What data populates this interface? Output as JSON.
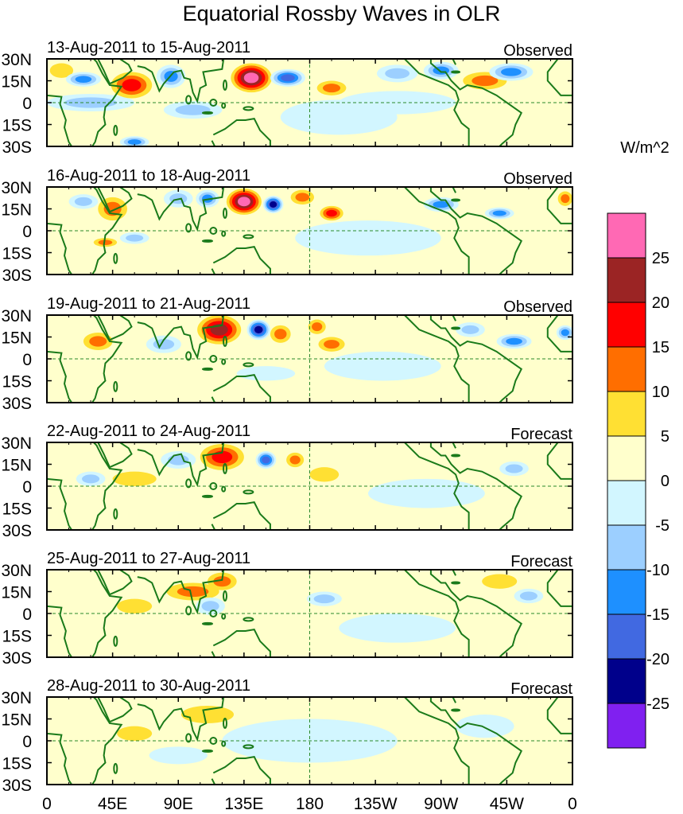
{
  "title": "Equatorial Rossby Waves in OLR",
  "colorbar": {
    "units": "W/m^2",
    "labels": [
      "25",
      "20",
      "15",
      "10",
      "5",
      "0",
      "-5",
      "-10",
      "-15",
      "-20",
      "-25"
    ],
    "colors": [
      "#ff69b4",
      "#9b2424",
      "#ff0000",
      "#ff6e00",
      "#ffe033",
      "#ffffcc",
      "#d2f6ff",
      "#9ccfff",
      "#1e90ff",
      "#4169e1",
      "#00008b",
      "#8020f0"
    ]
  },
  "lon_labels": [
    "0",
    "45E",
    "90E",
    "135E",
    "180",
    "135W",
    "90W",
    "45W",
    "0"
  ],
  "lat_labels": [
    "30N",
    "15N",
    "0",
    "15S",
    "30S"
  ],
  "chart_data": {
    "type": "heatmap",
    "title": "Equatorial Rossby Waves in OLR",
    "xlabel": "Longitude",
    "ylabel": "Latitude",
    "xlim": [
      0,
      360
    ],
    "ylim": [
      -30,
      30
    ],
    "levels": [
      -25,
      -20,
      -15,
      -10,
      -5,
      0,
      5,
      10,
      15,
      20,
      25
    ],
    "anomaly_format": "[lon, lat, lon_halfwidth_deg, lat_halfwidth_deg, peak_value]",
    "panels": [
      {
        "date": "13-Aug-2011 to 15-Aug-2011",
        "type": "Observed",
        "anomalies": [
          [
            200,
            -10,
            40,
            12,
            -3
          ],
          [
            30,
            0,
            30,
            6,
            -6
          ],
          [
            240,
            0,
            40,
            8,
            -3
          ],
          [
            100,
            -5,
            20,
            6,
            -6
          ],
          [
            58,
            12,
            14,
            9,
            17
          ],
          [
            140,
            17,
            14,
            10,
            28
          ],
          [
            195,
            10,
            10,
            5,
            14
          ],
          [
            300,
            15,
            15,
            6,
            13
          ],
          [
            10,
            22,
            8,
            5,
            10
          ],
          [
            25,
            16,
            12,
            5,
            -12
          ],
          [
            85,
            18,
            10,
            8,
            -12
          ],
          [
            165,
            17,
            12,
            6,
            -17
          ],
          [
            240,
            20,
            14,
            6,
            -9
          ],
          [
            270,
            22,
            12,
            6,
            -14
          ],
          [
            318,
            21,
            15,
            6,
            -14
          ],
          [
            60,
            -27,
            10,
            4,
            -14
          ]
        ]
      },
      {
        "date": "16-Aug-2011 to 18-Aug-2011",
        "type": "Observed",
        "anomalies": [
          [
            220,
            -5,
            50,
            12,
            -3
          ],
          [
            45,
            15,
            10,
            8,
            13
          ],
          [
            135,
            20,
            12,
            9,
            28
          ],
          [
            155,
            18,
            7,
            6,
            -22
          ],
          [
            175,
            23,
            8,
            5,
            15
          ],
          [
            195,
            12,
            8,
            5,
            17
          ],
          [
            110,
            22,
            8,
            6,
            -12
          ],
          [
            90,
            22,
            10,
            6,
            -10
          ],
          [
            25,
            20,
            10,
            5,
            -10
          ],
          [
            310,
            12,
            10,
            4,
            -15
          ],
          [
            270,
            18,
            12,
            5,
            -12
          ],
          [
            355,
            22,
            5,
            5,
            13
          ],
          [
            60,
            -5,
            10,
            4,
            -10
          ],
          [
            40,
            -8,
            8,
            3,
            12
          ]
        ]
      },
      {
        "date": "19-Aug-2011 to 21-Aug-2011",
        "type": "Observed",
        "anomalies": [
          [
            230,
            -5,
            40,
            10,
            -3
          ],
          [
            150,
            -10,
            20,
            5,
            -5
          ],
          [
            35,
            12,
            10,
            6,
            12
          ],
          [
            118,
            20,
            15,
            10,
            22
          ],
          [
            145,
            20,
            8,
            7,
            -22
          ],
          [
            160,
            17,
            7,
            6,
            15
          ],
          [
            185,
            22,
            6,
            5,
            14
          ],
          [
            195,
            10,
            9,
            5,
            15
          ],
          [
            80,
            10,
            12,
            6,
            -10
          ],
          [
            320,
            12,
            12,
            5,
            -15
          ],
          [
            290,
            20,
            10,
            5,
            -10
          ],
          [
            355,
            18,
            6,
            5,
            -12
          ]
        ]
      },
      {
        "date": "22-Aug-2011 to 24-Aug-2011",
        "type": "Forecast",
        "anomalies": [
          [
            260,
            -5,
            40,
            10,
            -3
          ],
          [
            30,
            5,
            10,
            5,
            -6
          ],
          [
            120,
            20,
            15,
            9,
            17
          ],
          [
            150,
            18,
            7,
            6,
            -17
          ],
          [
            170,
            18,
            6,
            5,
            13
          ],
          [
            190,
            8,
            10,
            5,
            10
          ],
          [
            90,
            18,
            12,
            6,
            -8
          ],
          [
            320,
            12,
            10,
            5,
            -10
          ],
          [
            60,
            5,
            15,
            5,
            8
          ]
        ]
      },
      {
        "date": "25-Aug-2011 to 27-Aug-2011",
        "type": "Forecast",
        "anomalies": [
          [
            240,
            -10,
            40,
            10,
            -3
          ],
          [
            100,
            15,
            18,
            6,
            12
          ],
          [
            120,
            22,
            10,
            6,
            12
          ],
          [
            112,
            5,
            10,
            6,
            -8
          ],
          [
            60,
            5,
            12,
            5,
            6
          ],
          [
            190,
            10,
            12,
            5,
            -6
          ],
          [
            310,
            22,
            12,
            5,
            7
          ],
          [
            330,
            12,
            10,
            5,
            -8
          ]
        ]
      },
      {
        "date": "28-Aug-2011 to 30-Aug-2011",
        "type": "Forecast",
        "anomalies": [
          [
            180,
            0,
            60,
            15,
            -3
          ],
          [
            300,
            10,
            20,
            8,
            -3
          ],
          [
            90,
            -10,
            20,
            6,
            -3
          ],
          [
            110,
            18,
            18,
            6,
            7
          ],
          [
            60,
            5,
            12,
            5,
            6
          ]
        ]
      }
    ]
  }
}
